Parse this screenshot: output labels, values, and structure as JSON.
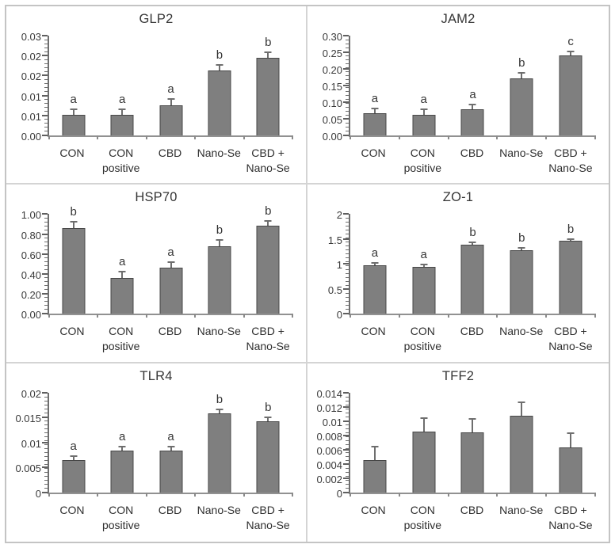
{
  "figure": {
    "style": {
      "bar_fill": "#7f7f7f",
      "bar_border": "#474747",
      "error_bar_color": "#6e6e6e",
      "axis_color": "#6e6e6e",
      "text_color": "#363636",
      "panel_divider_color": "#d4d4d4",
      "outer_border_color": "#c4c4c4",
      "background": "#ffffff"
    },
    "layout": {
      "rows": 3,
      "cols": 2,
      "legend": "none",
      "grid": "off"
    }
  },
  "chart_data": [
    {
      "type": "bar",
      "title": "GLP2",
      "categories": [
        "CON",
        "CON positive",
        "CBD",
        "Nano-Se",
        "CBD + Nano-Se"
      ],
      "values": [
        0.0052,
        0.0052,
        0.0076,
        0.0163,
        0.0195
      ],
      "errors": [
        0.0013,
        0.0013,
        0.0015,
        0.0013,
        0.0013
      ],
      "sig_letters": [
        "a",
        "a",
        "a",
        "b",
        "b"
      ],
      "ylim": [
        0,
        0.025
      ],
      "yticks": [
        {
          "value": 0,
          "label": "0.00"
        },
        {
          "value": 0.005,
          "label": "0.01"
        },
        {
          "value": 0.01,
          "label": "0.01"
        },
        {
          "value": 0.015,
          "label": "0.02"
        },
        {
          "value": 0.02,
          "label": "0.02"
        },
        {
          "value": 0.025,
          "label": "0.03"
        }
      ]
    },
    {
      "type": "bar",
      "title": "JAM2",
      "categories": [
        "CON",
        "CON positive",
        "CBD",
        "Nano-Se",
        "CBD + Nano-Se"
      ],
      "values": [
        0.066,
        0.062,
        0.079,
        0.172,
        0.24
      ],
      "errors": [
        0.015,
        0.016,
        0.014,
        0.015,
        0.012
      ],
      "sig_letters": [
        "a",
        "a",
        "a",
        "b",
        "c"
      ],
      "ylim": [
        0,
        0.3
      ],
      "yticks": [
        {
          "value": 0,
          "label": "0.00"
        },
        {
          "value": 0.05,
          "label": "0.05"
        },
        {
          "value": 0.1,
          "label": "0.10"
        },
        {
          "value": 0.15,
          "label": "0.15"
        },
        {
          "value": 0.2,
          "label": "0.20"
        },
        {
          "value": 0.25,
          "label": "0.25"
        },
        {
          "value": 0.3,
          "label": "0.30"
        }
      ]
    },
    {
      "type": "bar",
      "title": "HSP70",
      "categories": [
        "CON",
        "CON positive",
        "CBD",
        "Nano-Se",
        "CBD + Nano-Se"
      ],
      "values": [
        0.86,
        0.36,
        0.46,
        0.68,
        0.88
      ],
      "errors": [
        0.06,
        0.06,
        0.06,
        0.06,
        0.055
      ],
      "sig_letters": [
        "b",
        "a",
        "a",
        "b",
        "b"
      ],
      "ylim": [
        0,
        1.0
      ],
      "yticks": [
        {
          "value": 0,
          "label": "0.00"
        },
        {
          "value": 0.2,
          "label": "0.20"
        },
        {
          "value": 0.4,
          "label": "0.40"
        },
        {
          "value": 0.6,
          "label": "0.60"
        },
        {
          "value": 0.8,
          "label": "0.80"
        },
        {
          "value": 1.0,
          "label": "1.00"
        }
      ]
    },
    {
      "type": "bar",
      "title": "ZO-1",
      "categories": [
        "CON",
        "CON positive",
        "CBD",
        "Nano-Se",
        "CBD + Nano-Se"
      ],
      "values": [
        0.98,
        0.94,
        1.39,
        1.28,
        1.46
      ],
      "errors": [
        0.04,
        0.05,
        0.05,
        0.05,
        0.04
      ],
      "sig_letters": [
        "a",
        "a",
        "b",
        "b",
        "b"
      ],
      "ylim": [
        0,
        2
      ],
      "yticks": [
        {
          "value": 0,
          "label": "0"
        },
        {
          "value": 0.5,
          "label": "0.5"
        },
        {
          "value": 1,
          "label": "1"
        },
        {
          "value": 1.5,
          "label": "1.5"
        },
        {
          "value": 2,
          "label": "2"
        }
      ]
    },
    {
      "type": "bar",
      "title": "TLR4",
      "categories": [
        "CON",
        "CON positive",
        "CBD",
        "Nano-Se",
        "CBD + Nano-Se"
      ],
      "values": [
        0.0065,
        0.0083,
        0.0084,
        0.0158,
        0.0142
      ],
      "errors": [
        0.0008,
        0.0009,
        0.0008,
        0.0008,
        0.0008
      ],
      "sig_letters": [
        "a",
        "a",
        "a",
        "b",
        "b"
      ],
      "ylim": [
        0,
        0.02
      ],
      "yticks": [
        {
          "value": 0,
          "label": "0"
        },
        {
          "value": 0.005,
          "label": "0.005"
        },
        {
          "value": 0.01,
          "label": "0.01"
        },
        {
          "value": 0.015,
          "label": "0.015"
        },
        {
          "value": 0.02,
          "label": "0.02"
        }
      ]
    },
    {
      "type": "bar",
      "title": "TFF2",
      "categories": [
        "CON",
        "CON positive",
        "CBD",
        "Nano-Se",
        "CBD + Nano-Se"
      ],
      "values": [
        0.0045,
        0.0085,
        0.0084,
        0.0107,
        0.0063
      ],
      "errors": [
        0.0019,
        0.0019,
        0.0019,
        0.0019,
        0.002
      ],
      "sig_letters": [
        "",
        "",
        "",
        "",
        ""
      ],
      "ylim": [
        0,
        0.014
      ],
      "yticks": [
        {
          "value": 0,
          "label": "0"
        },
        {
          "value": 0.002,
          "label": "0.002"
        },
        {
          "value": 0.004,
          "label": "0.004"
        },
        {
          "value": 0.006,
          "label": "0.006"
        },
        {
          "value": 0.008,
          "label": "0.008"
        },
        {
          "value": 0.01,
          "label": "0.01"
        },
        {
          "value": 0.012,
          "label": "0.012"
        },
        {
          "value": 0.014,
          "label": "0.014"
        }
      ]
    }
  ]
}
